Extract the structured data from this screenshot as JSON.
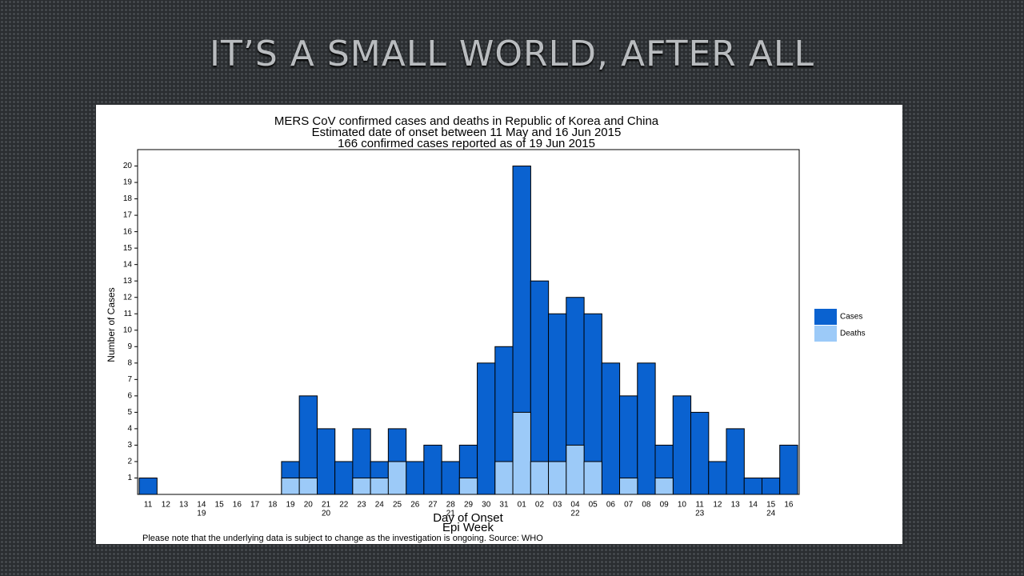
{
  "slide_title": "IT’S A SMALL WORLD, AFTER ALL",
  "chart_data": {
    "type": "bar",
    "title": [
      "MERS CoV confirmed cases and deaths in Republic of Korea and China",
      "Estimated date of onset between 11 May and 16 Jun 2015",
      "166 confirmed cases reported as of 19 Jun 2015"
    ],
    "xlabel": [
      "Day of Onset",
      "Epi Week"
    ],
    "ylabel": "Number of Cases",
    "note": "Please note that the underlying data is subject to change as the investigation is ongoing. Source: WHO",
    "categories": [
      "11",
      "12",
      "13",
      "14",
      "15",
      "16",
      "17",
      "18",
      "19",
      "20",
      "21",
      "22",
      "23",
      "24",
      "25",
      "26",
      "27",
      "28",
      "29",
      "30",
      "31",
      "01",
      "02",
      "03",
      "04",
      "05",
      "06",
      "07",
      "08",
      "09",
      "10",
      "11",
      "12",
      "13",
      "14",
      "15",
      "16"
    ],
    "epi_weeks": [
      null,
      null,
      null,
      "19",
      null,
      null,
      null,
      null,
      null,
      null,
      "20",
      null,
      null,
      null,
      null,
      null,
      null,
      "21",
      null,
      null,
      null,
      null,
      null,
      null,
      "22",
      null,
      null,
      null,
      null,
      null,
      null,
      "23",
      null,
      null,
      null,
      "24",
      null
    ],
    "series": [
      {
        "name": "Cases",
        "color": "#0a62d0",
        "values": [
          1,
          0,
          0,
          0,
          0,
          0,
          0,
          0,
          2,
          6,
          4,
          2,
          4,
          2,
          4,
          2,
          3,
          2,
          3,
          8,
          9,
          20,
          13,
          11,
          12,
          11,
          8,
          6,
          8,
          3,
          6,
          5,
          2,
          4,
          1,
          1,
          3
        ]
      },
      {
        "name": "Deaths",
        "color": "#9ccaf8",
        "values": [
          0,
          0,
          0,
          0,
          0,
          0,
          0,
          0,
          1,
          1,
          0,
          0,
          1,
          1,
          2,
          0,
          0,
          0,
          1,
          0,
          2,
          5,
          2,
          2,
          3,
          2,
          0,
          1,
          0,
          1,
          0,
          0,
          0,
          0,
          0,
          0,
          0
        ]
      }
    ],
    "ylim": [
      0,
      21
    ],
    "yticks": [
      1,
      2,
      3,
      4,
      5,
      6,
      7,
      8,
      9,
      10,
      11,
      12,
      13,
      14,
      15,
      16,
      17,
      18,
      19,
      20
    ],
    "overlay": true,
    "legend": "right"
  }
}
